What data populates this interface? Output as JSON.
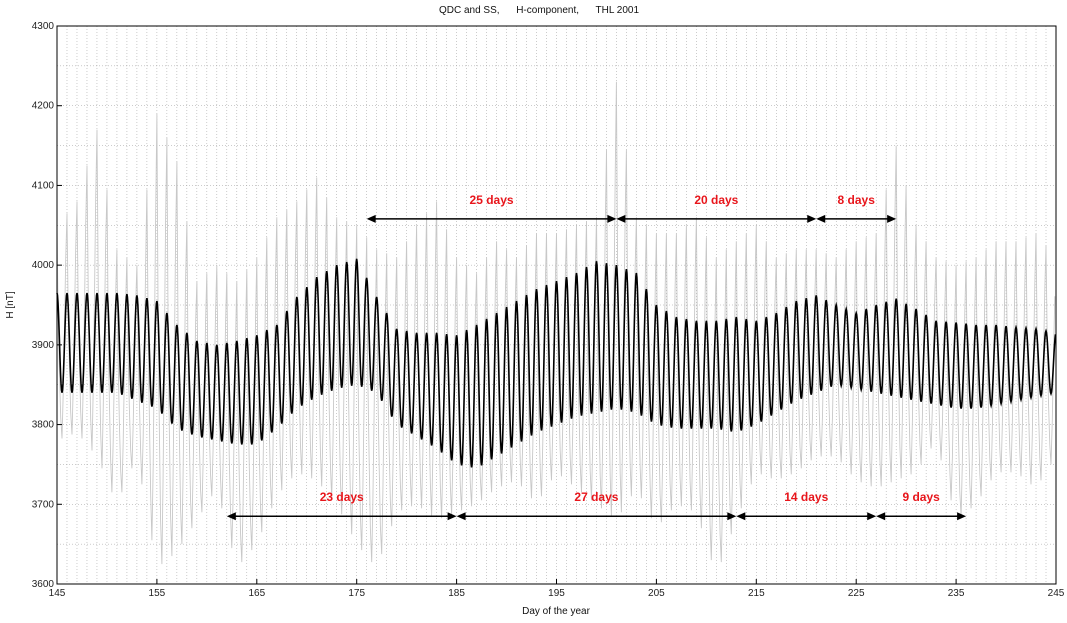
{
  "chart_data": {
    "type": "line",
    "title": "QDC and SS,      H-component,      THL 2001",
    "xlabel": "Day of the year",
    "ylabel": "H [nT]",
    "xlim": [
      145,
      245
    ],
    "ylim": [
      3600,
      4300
    ],
    "xticks": [
      145,
      155,
      165,
      175,
      185,
      195,
      205,
      215,
      225,
      235,
      245
    ],
    "yticks": [
      3600,
      3700,
      3800,
      3900,
      4000,
      4100,
      4200,
      4300
    ],
    "grid": true,
    "series": [
      {
        "role": "observed variation",
        "color": "#c8c8c8",
        "x": [
          145,
          147,
          149,
          151,
          153,
          155,
          157,
          159,
          161,
          163,
          165,
          167,
          169,
          171,
          173,
          175,
          177,
          179,
          181,
          183,
          185,
          187,
          189,
          191,
          193,
          195,
          197,
          199,
          201,
          203,
          205,
          207,
          209,
          211,
          213,
          215,
          217,
          219,
          221,
          223,
          225,
          227,
          229,
          231,
          233,
          235,
          237,
          239,
          241,
          243,
          245
        ],
        "daily_max": [
          4050,
          4080,
          4170,
          4020,
          4000,
          4190,
          4130,
          3980,
          4000,
          3980,
          4010,
          4060,
          4080,
          4110,
          4060,
          4050,
          4020,
          4010,
          4050,
          4080,
          4010,
          3990,
          4030,
          4010,
          4040,
          4040,
          4050,
          4060,
          4230,
          4060,
          4040,
          4040,
          4060,
          4010,
          4030,
          4050,
          4010,
          4020,
          4020,
          4010,
          4030,
          4040,
          4150,
          4050,
          4010,
          4000,
          4010,
          4030,
          4030,
          4040,
          4010
        ],
        "daily_min": [
          3780,
          3790,
          3760,
          3700,
          3760,
          3620,
          3640,
          3680,
          3720,
          3620,
          3650,
          3710,
          3740,
          3730,
          3700,
          3650,
          3620,
          3690,
          3700,
          3680,
          3690,
          3700,
          3720,
          3730,
          3700,
          3740,
          3720,
          3700,
          3680,
          3720,
          3670,
          3700,
          3690,
          3610,
          3680,
          3740,
          3730,
          3740,
          3760,
          3760,
          3730,
          3720,
          3730,
          3740,
          3780,
          3680,
          3700,
          3740,
          3740,
          3720,
          3760
        ]
      },
      {
        "role": "quiet daily curve",
        "color": "#000000",
        "x": [
          145,
          147,
          149,
          151,
          153,
          155,
          157,
          159,
          161,
          163,
          165,
          167,
          169,
          171,
          173,
          175,
          177,
          179,
          181,
          183,
          185,
          187,
          189,
          191,
          193,
          195,
          197,
          199,
          201,
          203,
          205,
          207,
          209,
          211,
          213,
          215,
          217,
          219,
          221,
          223,
          225,
          227,
          229,
          231,
          233,
          235,
          237,
          239,
          241,
          243,
          245
        ],
        "daily_max": [
          3965,
          3965,
          3965,
          3965,
          3962,
          3955,
          3925,
          3905,
          3900,
          3905,
          3912,
          3925,
          3960,
          3985,
          4000,
          4008,
          3960,
          3920,
          3915,
          3915,
          3912,
          3925,
          3940,
          3955,
          3970,
          3980,
          3990,
          4005,
          4000,
          3990,
          3950,
          3935,
          3930,
          3930,
          3935,
          3930,
          3940,
          3955,
          3962,
          3950,
          3940,
          3950,
          3958,
          3945,
          3930,
          3928,
          3925,
          3925,
          3922,
          3920,
          3915
        ],
        "daily_min": [
          3840,
          3840,
          3840,
          3840,
          3830,
          3820,
          3795,
          3785,
          3780,
          3775,
          3775,
          3795,
          3820,
          3835,
          3845,
          3850,
          3840,
          3800,
          3785,
          3770,
          3750,
          3745,
          3760,
          3775,
          3790,
          3800,
          3810,
          3815,
          3820,
          3815,
          3800,
          3795,
          3795,
          3795,
          3790,
          3800,
          3815,
          3830,
          3840,
          3850,
          3845,
          3840,
          3835,
          3830,
          3825,
          3820,
          3820,
          3825,
          3830,
          3835,
          3840
        ]
      }
    ],
    "intervals_top": [
      {
        "start": 176,
        "end": 201,
        "label": "25 days"
      },
      {
        "start": 201,
        "end": 221,
        "label": "20 days"
      },
      {
        "start": 221,
        "end": 229,
        "label": "8 days"
      }
    ],
    "intervals_bottom": [
      {
        "start": 162,
        "end": 185,
        "label": "23 days"
      },
      {
        "start": 185,
        "end": 213,
        "label": "27 days"
      },
      {
        "start": 213,
        "end": 227,
        "label": "14 days"
      },
      {
        "start": 227,
        "end": 236,
        "label": "9 days"
      }
    ],
    "arrow_y_top": 4058,
    "arrow_y_bottom": 3685,
    "colors": {
      "observed": "#c8c8c8",
      "qdc": "#000000",
      "annotation": "#e8151b",
      "arrow": "#000000",
      "grid": "#9a9a9a"
    }
  }
}
